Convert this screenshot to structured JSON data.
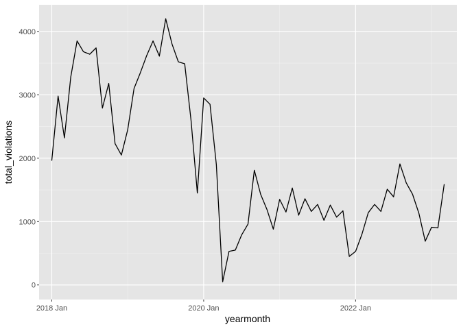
{
  "chart_data": {
    "type": "line",
    "xlabel": "yearmonth",
    "ylabel": "total_violations",
    "x_ticks": [
      "2018 Jan",
      "2020 Jan",
      "2022 Jan"
    ],
    "y_ticks": [
      "0",
      "1000",
      "2000",
      "3000",
      "4000"
    ],
    "ylim": [
      -230,
      4420
    ],
    "xlim": [
      "2017-11",
      "2023-05"
    ],
    "grid": true,
    "background": "#e5e5e5",
    "line_color": "#000000",
    "series": [
      {
        "x": [
          "2018-01",
          "2018-02",
          "2018-03",
          "2018-04",
          "2018-05",
          "2018-06",
          "2018-07",
          "2018-08",
          "2018-09",
          "2018-10",
          "2018-11",
          "2018-12",
          "2019-01",
          "2019-02",
          "2019-03",
          "2019-04",
          "2019-05",
          "2019-06",
          "2019-07",
          "2019-08",
          "2019-09",
          "2019-10",
          "2019-11",
          "2019-12",
          "2020-01",
          "2020-02",
          "2020-03",
          "2020-04",
          "2020-05",
          "2020-06",
          "2020-07",
          "2020-08",
          "2020-09",
          "2020-10",
          "2020-11",
          "2020-12",
          "2021-01",
          "2021-02",
          "2021-03",
          "2021-04",
          "2021-05",
          "2021-06",
          "2021-07",
          "2021-08",
          "2021-09",
          "2021-10",
          "2021-11",
          "2021-12",
          "2022-01",
          "2022-02",
          "2022-03",
          "2022-04",
          "2022-05",
          "2022-06",
          "2022-07",
          "2022-08",
          "2022-09",
          "2022-10",
          "2022-11",
          "2022-12",
          "2023-01",
          "2023-02",
          "2023-03"
        ],
        "values": [
          1960,
          2980,
          2320,
          3280,
          3850,
          3680,
          3640,
          3740,
          2790,
          3180,
          2230,
          2050,
          2450,
          3100,
          3350,
          3620,
          3850,
          3610,
          4200,
          3800,
          3520,
          3490,
          2600,
          1450,
          2950,
          2850,
          1900,
          50,
          530,
          550,
          790,
          960,
          1810,
          1430,
          1190,
          880,
          1350,
          1150,
          1530,
          1100,
          1360,
          1160,
          1270,
          1020,
          1260,
          1070,
          1170,
          450,
          530,
          800,
          1140,
          1270,
          1160,
          1510,
          1390,
          1910,
          1610,
          1430,
          1130,
          690,
          910,
          900,
          1590
        ]
      }
    ]
  }
}
